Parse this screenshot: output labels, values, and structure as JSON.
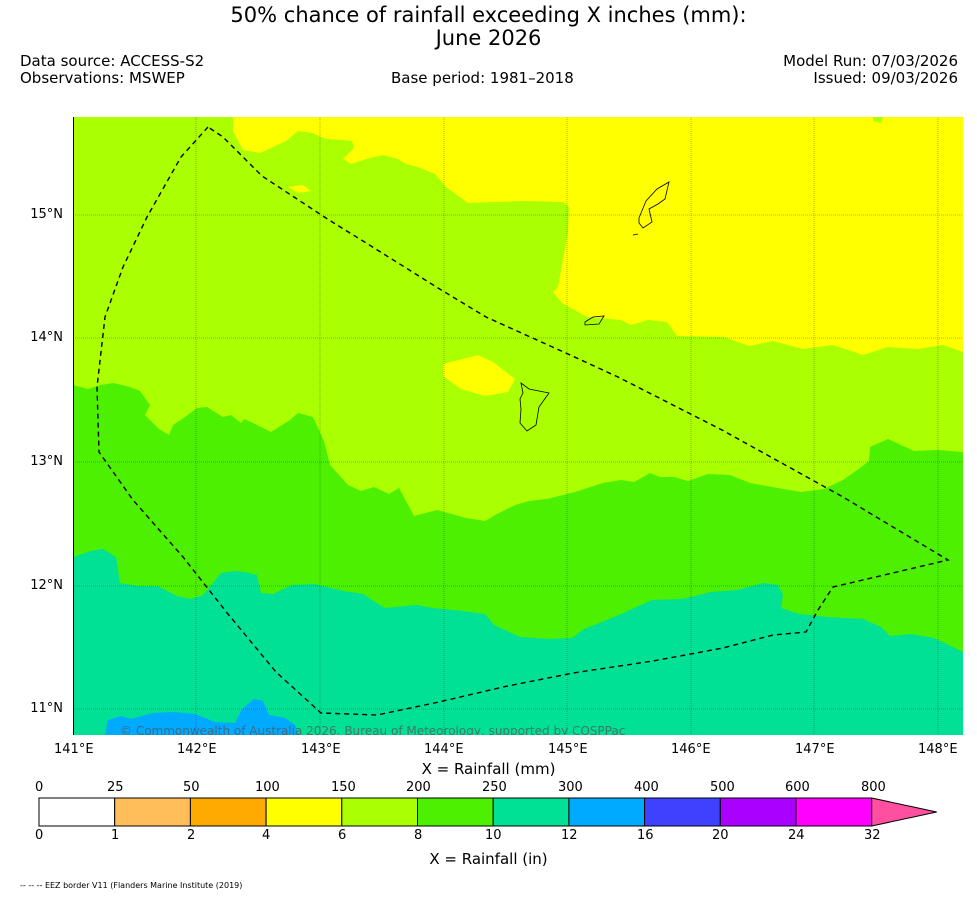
{
  "title": {
    "line1": "50% chance of rainfall exceeding X inches (mm):",
    "line2": "June 2026"
  },
  "header": {
    "data_source": "Data source: ACCESS-S2",
    "observations": "Observations: MSWEP",
    "base_period": "Base period: 1981–2018",
    "model_run": "Model Run: 07/03/2026",
    "issued": "Issued: 09/03/2026"
  },
  "map": {
    "lon_labels": [
      "141°E",
      "142°E",
      "143°E",
      "144°E",
      "145°E",
      "146°E",
      "147°E",
      "148°E"
    ],
    "lat_labels": [
      "15°N",
      "14°N",
      "13°N",
      "12°N",
      "11°N"
    ],
    "lon_range": [
      141,
      148.2
    ],
    "lat_range": [
      10.8,
      15.8
    ],
    "copyright": "© Commonwealth of Australia 2026, Bureau of Meteorology, supported by COSPPac"
  },
  "colorbar": {
    "mm_ticks": [
      "0",
      "25",
      "50",
      "100",
      "150",
      "200",
      "250",
      "300",
      "400",
      "500",
      "600",
      "800"
    ],
    "in_ticks": [
      "0",
      "1",
      "2",
      "4",
      "6",
      "8",
      "10",
      "12",
      "16",
      "20",
      "24",
      "32"
    ],
    "colors": [
      "#ffffff",
      "#ffbe59",
      "#ffaa00",
      "#ffff00",
      "#aaff00",
      "#4cf000",
      "#00e196",
      "#00aaff",
      "#4040ff",
      "#aa00ff",
      "#ff00ff",
      "#ff4fa0"
    ],
    "mm_label": "X = Rainfall (mm)",
    "in_label": "X = Rainfall (in)"
  },
  "footnote": "-- -- -- EEZ border V11 (Flanders Marine Institute (2019)"
}
